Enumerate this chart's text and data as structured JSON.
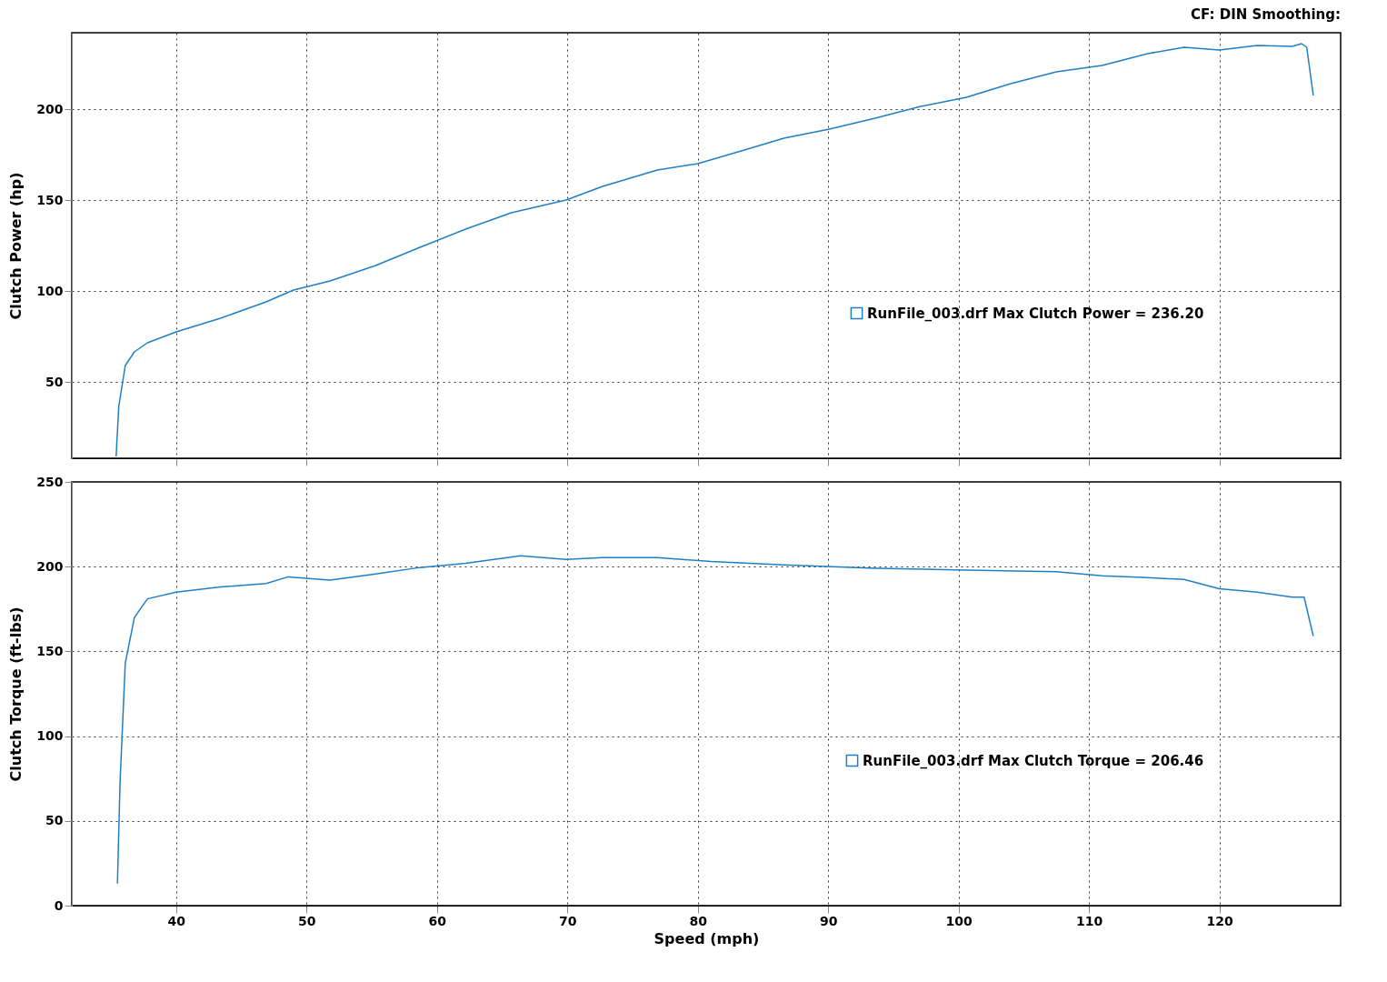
{
  "chart_data": [
    {
      "type": "line",
      "annotations": [
        "CF: DIN  Smoothing:"
      ],
      "ylabel": "Clutch Power (hp)",
      "xlim": [
        32,
        129.3
      ],
      "xticks": [
        40,
        50,
        60,
        70,
        80,
        90,
        100,
        110,
        120
      ],
      "ylim": [
        8,
        242
      ],
      "yticks": [
        50,
        100,
        150,
        200
      ],
      "tick_labels": "y",
      "grid": true,
      "legend": "bottom right",
      "series": [
        {
          "name": "RunFile_003.drf Max Clutch Power = 236.20",
          "color": "#1f7fc4",
          "x": [
            35.4,
            35.6,
            36.1,
            36.8,
            37.8,
            40,
            43.4,
            46.9,
            49,
            51.8,
            55.3,
            58.7,
            62.2,
            65.7,
            69.9,
            72.7,
            76.9,
            80,
            83.1,
            86.6,
            90.1,
            93.6,
            97.1,
            100.6,
            104,
            107.5,
            111,
            114.5,
            117.3,
            120,
            122.9,
            125.6,
            126.3,
            126.7,
            127.2
          ],
          "values": [
            9,
            36.5,
            59,
            66.5,
            71.5,
            77.5,
            85,
            94,
            100.5,
            105.5,
            114,
            124,
            134,
            143,
            150,
            157.5,
            166.5,
            170,
            176.5,
            184,
            189,
            195,
            201.5,
            206.5,
            214,
            220.5,
            224,
            230.5,
            234,
            232.5,
            235,
            234.5,
            236,
            234,
            207.5
          ]
        }
      ]
    },
    {
      "type": "line",
      "xlabel": "Speed (mph)",
      "ylabel": "Clutch Torque (ft-lbs)",
      "xlim": [
        32,
        129.3
      ],
      "xticks": [
        40,
        50,
        60,
        70,
        80,
        90,
        100,
        110,
        120
      ],
      "ylim": [
        0,
        250
      ],
      "yticks": [
        0,
        50,
        100,
        150,
        200,
        250
      ],
      "grid": true,
      "legend": "bottom right",
      "series": [
        {
          "name": "RunFile_003.drf Max Clutch Torque = 206.46",
          "color": "#1f7fc4",
          "x": [
            35.5,
            35.7,
            36.1,
            36.8,
            37.8,
            40,
            43.4,
            46.9,
            48.6,
            51.1,
            51.8,
            55.3,
            58.7,
            62.2,
            66.4,
            69.9,
            72.7,
            76.9,
            81,
            86.6,
            93.6,
            100.6,
            107.5,
            111,
            114.5,
            117.3,
            120,
            122.9,
            125.6,
            126.5,
            127.2
          ],
          "values": [
            13,
            73,
            143,
            170,
            181,
            185,
            188,
            190,
            194,
            192.5,
            192,
            195.7,
            199.5,
            202,
            206.4,
            204.3,
            205.4,
            205.4,
            203,
            201,
            199,
            198,
            197,
            194.6,
            193.5,
            192.5,
            187,
            185,
            182,
            182,
            159
          ]
        }
      ]
    }
  ]
}
